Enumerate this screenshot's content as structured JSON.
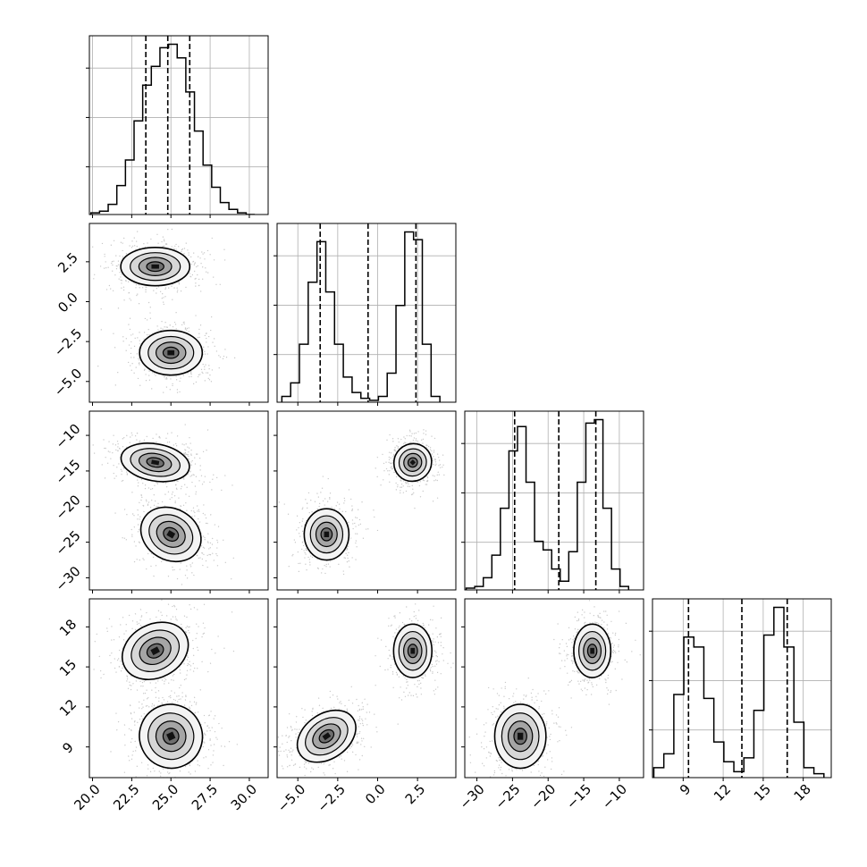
{
  "chart_data": {
    "type": "corner",
    "params": [
      {
        "range": [
          19.8,
          31.2
        ],
        "ticks": [
          20.0,
          22.5,
          25.0,
          27.5,
          30.0
        ],
        "tick_labels": [
          "20.0",
          "22.5",
          "25.0",
          "27.5",
          "30.0"
        ],
        "quantiles": [
          23.4,
          24.8,
          26.2
        ],
        "hist": {
          "edges": [
            19.9,
            20.45,
            21.0,
            21.55,
            22.1,
            22.65,
            23.2,
            23.75,
            24.3,
            24.85,
            25.4,
            25.95,
            26.5,
            27.05,
            27.6,
            28.15,
            28.7,
            29.25,
            29.8,
            30.35
          ],
          "counts": [
            0.01,
            0.02,
            0.06,
            0.17,
            0.32,
            0.55,
            0.76,
            0.87,
            0.98,
            1.0,
            0.92,
            0.72,
            0.49,
            0.29,
            0.16,
            0.07,
            0.03,
            0.01,
            0.0
          ]
        }
      },
      {
        "range": [
          -6.3,
          4.9
        ],
        "ticks": [
          -5.0,
          -2.5,
          0.0,
          2.5
        ],
        "tick_labels": [
          "−5.0",
          "−2.5",
          "0.0",
          "2.5"
        ],
        "quantiles": [
          -3.6,
          -0.6,
          2.4
        ],
        "hist": {
          "edges": [
            -6.0,
            -5.45,
            -4.9,
            -4.35,
            -3.8,
            -3.25,
            -2.7,
            -2.15,
            -1.6,
            -1.05,
            -0.5,
            0.05,
            0.6,
            1.15,
            1.7,
            2.25,
            2.8,
            3.35,
            3.9
          ],
          "counts": [
            0.03,
            0.1,
            0.3,
            0.62,
            0.83,
            0.57,
            0.3,
            0.13,
            0.05,
            0.02,
            0.01,
            0.03,
            0.15,
            0.5,
            0.88,
            0.84,
            0.3,
            0.03
          ]
        }
      },
      {
        "range": [
          -31.7,
          -6.6
        ],
        "ticks": [
          -30,
          -25,
          -20,
          -15,
          -10
        ],
        "tick_labels": [
          "−30",
          "−25",
          "−20",
          "−15",
          "−10"
        ],
        "quantiles": [
          -24.7,
          -18.5,
          -13.3
        ],
        "hist": {
          "edges": [
            -31.5,
            -30.3,
            -29.1,
            -27.9,
            -26.7,
            -25.5,
            -24.3,
            -23.1,
            -21.9,
            -20.7,
            -19.5,
            -18.3,
            -17.1,
            -15.9,
            -14.7,
            -13.5,
            -12.3,
            -11.1,
            -9.9,
            -8.7
          ],
          "counts": [
            0.01,
            0.02,
            0.07,
            0.2,
            0.47,
            0.8,
            0.94,
            0.62,
            0.28,
            0.23,
            0.12,
            0.05,
            0.22,
            0.62,
            0.96,
            0.98,
            0.47,
            0.12,
            0.02
          ]
        }
      },
      {
        "range": [
          6.7,
          20.1
        ],
        "ticks": [
          9,
          12,
          15,
          18
        ],
        "tick_labels": [
          "9",
          "12",
          "15",
          "18"
        ],
        "quantiles": [
          9.4,
          13.4,
          16.8
        ],
        "hist": {
          "edges": [
            6.8,
            7.55,
            8.3,
            9.05,
            9.8,
            10.55,
            11.3,
            12.05,
            12.8,
            13.55,
            14.3,
            15.05,
            15.8,
            16.55,
            17.3,
            18.05,
            18.8,
            19.55
          ],
          "counts": [
            0.05,
            0.12,
            0.42,
            0.71,
            0.66,
            0.4,
            0.18,
            0.08,
            0.03,
            0.1,
            0.34,
            0.72,
            0.86,
            0.66,
            0.28,
            0.05,
            0.02
          ]
        }
      }
    ],
    "clusters": [
      {
        "mean": [
          24.0,
          2.2,
          -13.8,
          16.2
        ],
        "sd": [
          1.1,
          0.6,
          1.3,
          1.0
        ],
        "angle": {
          "0-3": 28,
          "0-2": -10,
          "1-2": 45,
          "1-3": 0,
          "2-3": 0
        }
      },
      {
        "mean": [
          25.0,
          -3.2,
          -23.9,
          9.8
        ],
        "sd": [
          1.0,
          0.7,
          1.8,
          1.2
        ],
        "angle": {
          "0-3": 25,
          "0-2": -30,
          "1-2": 0,
          "1-3": -55,
          "2-3": 0
        }
      }
    ]
  }
}
